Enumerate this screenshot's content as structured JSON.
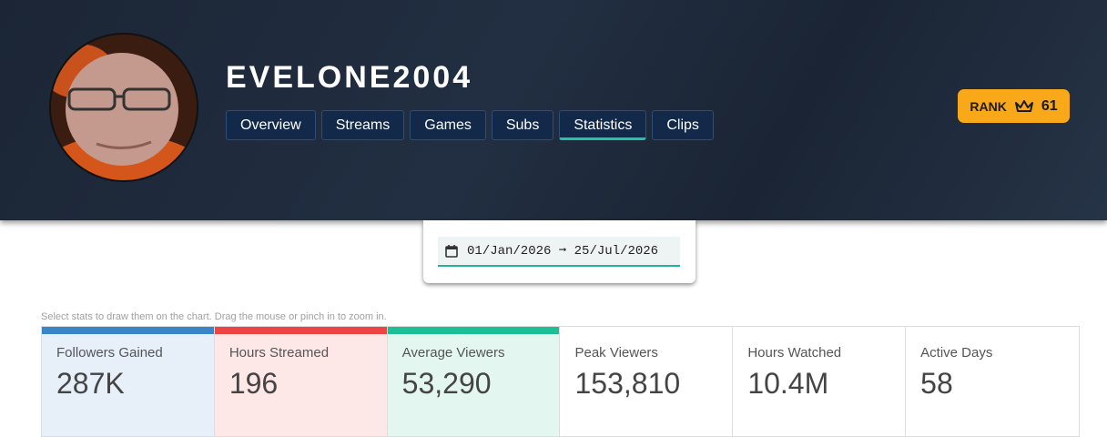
{
  "profile": {
    "name": "EVELONE2004",
    "tabs": [
      "Overview",
      "Streams",
      "Games",
      "Subs",
      "Statistics",
      "Clips"
    ],
    "active_tab": 4,
    "rank_label": "RANK",
    "rank_value": "61"
  },
  "date_range": "01/Jan/2026 ➞ 25/Jul/2026",
  "hint": "Select stats to draw them on the chart. Drag the mouse or pinch in to zoom in.",
  "stats": [
    {
      "label": "Followers Gained",
      "value": "287K",
      "color": "#3a85c6",
      "bg": "#e7f0f8"
    },
    {
      "label": "Hours Streamed",
      "value": "196",
      "color": "#ef4444",
      "bg": "#fde7e7"
    },
    {
      "label": "Average Viewers",
      "value": "53,290",
      "color": "#1fbf95",
      "bg": "#e3f6ef"
    },
    {
      "label": "Peak Viewers",
      "value": "153,810",
      "color": null,
      "bg": "#ffffff"
    },
    {
      "label": "Hours Watched",
      "value": "10.4M",
      "color": null,
      "bg": "#ffffff"
    },
    {
      "label": "Active Days",
      "value": "58",
      "color": null,
      "bg": "#ffffff"
    }
  ]
}
